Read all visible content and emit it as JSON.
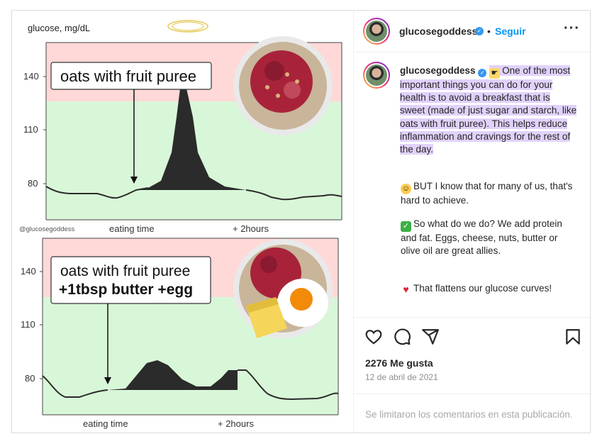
{
  "chart_data": [
    {
      "type": "area",
      "ylabel": "glucose, mg/dL",
      "yticks": [
        80,
        110,
        140
      ],
      "xticks": [
        "eating time",
        "+ 2hours"
      ],
      "annotation": "oats with fruit puree",
      "watermark": "@glucosegoddess"
    },
    {
      "type": "area",
      "yticks": [
        80,
        110,
        140
      ],
      "xticks": [
        "eating time",
        "+ 2hours"
      ],
      "annotation_line1": "oats with fruit puree",
      "annotation_line2": "+1tbsp butter +egg"
    }
  ],
  "colors": {
    "high_zone": "#ffd6d6",
    "normal_zone": "#d6f7d6",
    "curve": "#2b2b2b",
    "accent": "#0095f6"
  },
  "post": {
    "username": "glucosegoddess",
    "follow_label": "Seguir",
    "caption_username": "glucosegoddess",
    "caption_main": "One of the most important things you can do for your health is to avoid a breakfast that is sweet (made of just sugar and starch, like oats with fruit puree). This helps reduce inflammation and cravings for the rest of the day.",
    "para2": "BUT I know that for many of us, that's hard to achieve.",
    "para3": "So what do we do? We add protein and fat. Eggs, cheese, nuts, butter or olive oil are great allies.",
    "para4": "That flattens our glucose curves!",
    "likes": "2276 Me gusta",
    "date": "12 de abril de 2021",
    "comments_off": "Se limitaron los comentarios en esta publicación."
  },
  "icons": [
    "verified-icon",
    "more-icon",
    "heart-icon",
    "comment-icon",
    "share-icon",
    "bookmark-icon"
  ]
}
